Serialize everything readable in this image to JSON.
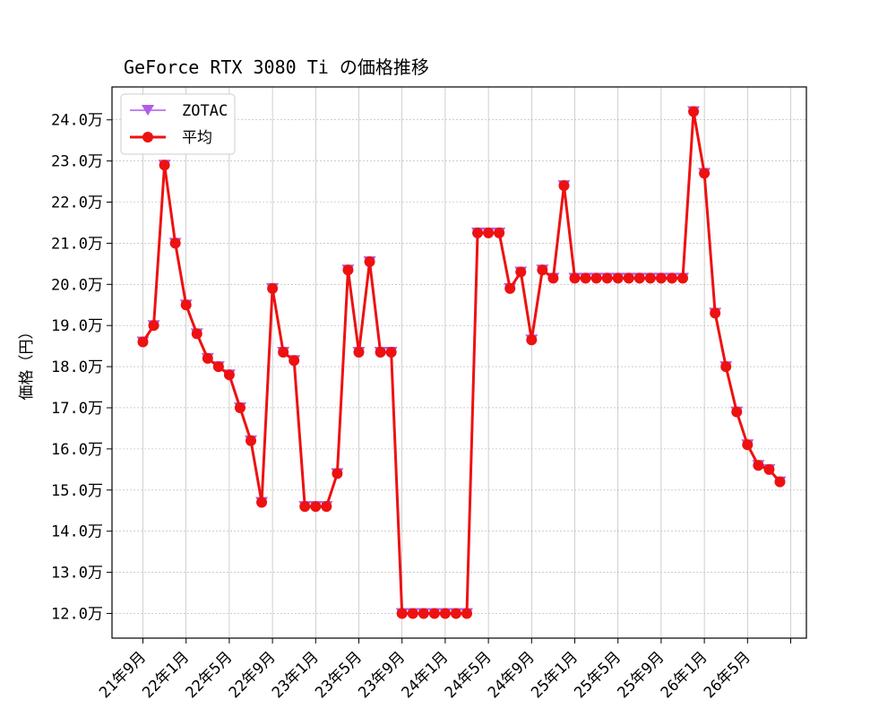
{
  "chart_data": {
    "type": "line",
    "title": "GeForce RTX 3080 Ti の価格推移",
    "xlabel": "",
    "ylabel": "価格（円）",
    "y_unit_suffix": "万",
    "ylim": [
      11.4,
      24.8
    ],
    "yticks": [
      12.0,
      13.0,
      14.0,
      15.0,
      16.0,
      17.0,
      18.0,
      19.0,
      20.0,
      21.0,
      22.0,
      23.0,
      24.0
    ],
    "ytick_labels": [
      "12.0万",
      "13.0万",
      "14.0万",
      "15.0万",
      "16.0万",
      "17.0万",
      "18.0万",
      "19.0万",
      "20.0万",
      "21.0万",
      "22.0万",
      "23.0万",
      "24.0万"
    ],
    "xtick_labels": [
      "21年9月",
      "22年1月",
      "22年5月",
      "22年9月",
      "23年1月",
      "23年5月",
      "23年9月",
      "24年1月",
      "24年5月",
      "24年9月",
      "25年1月",
      "25年5月",
      "25年9月",
      "26年1月",
      "26年5月"
    ],
    "grid": true,
    "legend_position": "top-left",
    "colors": {
      "zotac": "#b25ce8",
      "average": "#ee1111"
    },
    "series": [
      {
        "name": "ZOTAC",
        "marker": "triangle-down",
        "values": [
          18.6,
          19.0,
          22.9,
          21.0,
          19.5,
          18.8,
          18.2,
          18.0,
          17.8,
          17.0,
          16.2,
          14.7,
          19.9,
          18.35,
          18.15,
          14.6,
          14.6,
          14.6,
          15.4,
          20.35,
          18.35,
          20.55,
          18.35,
          18.35,
          12.0,
          12.0,
          12.0,
          12.0,
          12.0,
          12.0,
          12.0,
          21.25,
          21.25,
          21.25,
          19.9,
          20.3,
          18.65,
          20.35,
          20.15,
          22.4,
          20.15,
          20.15,
          20.15,
          20.15,
          20.15,
          20.15,
          20.15,
          20.15,
          20.15,
          20.15,
          20.15,
          24.2,
          22.7,
          19.3,
          18.0,
          16.9,
          16.1,
          15.6,
          15.5,
          15.2
        ]
      },
      {
        "name": "平均",
        "marker": "circle",
        "values": [
          18.6,
          19.0,
          22.9,
          21.0,
          19.5,
          18.8,
          18.2,
          18.0,
          17.8,
          17.0,
          16.2,
          14.7,
          19.9,
          18.35,
          18.15,
          14.6,
          14.6,
          14.6,
          15.4,
          20.35,
          18.35,
          20.55,
          18.35,
          18.35,
          12.0,
          12.0,
          12.0,
          12.0,
          12.0,
          12.0,
          12.0,
          21.25,
          21.25,
          21.25,
          19.9,
          20.3,
          18.65,
          20.35,
          20.15,
          22.4,
          20.15,
          20.15,
          20.15,
          20.15,
          20.15,
          20.15,
          20.15,
          20.15,
          20.15,
          20.15,
          20.15,
          24.2,
          22.7,
          19.3,
          18.0,
          16.9,
          16.1,
          15.6,
          15.5,
          15.2
        ]
      }
    ]
  }
}
